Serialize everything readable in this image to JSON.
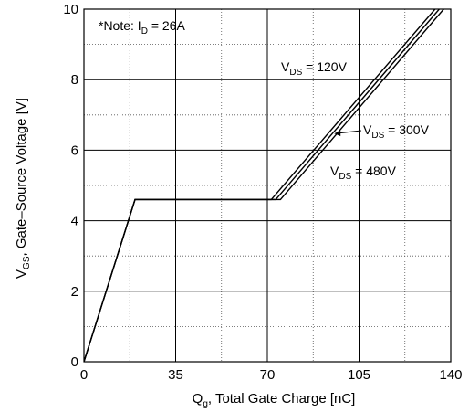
{
  "chart_data": {
    "type": "line",
    "xlabel": {
      "main": "Q",
      "sub": "g",
      "rest": ", Total Gate Charge [nC]"
    },
    "ylabel": {
      "main": "V",
      "sub": "GS",
      "rest": ", Gate–Source Voltage [V]"
    },
    "xlim": [
      0,
      140
    ],
    "ylim": [
      0,
      10
    ],
    "x_ticks": [
      0,
      35,
      70,
      105,
      140
    ],
    "y_ticks": [
      0,
      2,
      4,
      6,
      8,
      10
    ],
    "x_minor_grid": [
      17.5,
      52.5,
      87.5,
      122.5
    ],
    "y_minor_grid": [
      1,
      3,
      5,
      7,
      9
    ],
    "grid": true,
    "note": {
      "prefix": "*Note: I",
      "sub": "D",
      "suffix": " = 26A"
    },
    "series": [
      {
        "name": {
          "main": "V",
          "sub": "DS",
          "rest": " = 120V"
        },
        "x": [
          0,
          19.5,
          71.5,
          134
        ],
        "y": [
          0,
          4.6,
          4.6,
          10
        ]
      },
      {
        "name": {
          "main": "V",
          "sub": "DS",
          "rest": " = 300V"
        },
        "x": [
          0,
          19.5,
          73.2,
          135.6
        ],
        "y": [
          0,
          4.6,
          4.6,
          10
        ]
      },
      {
        "name": {
          "main": "V",
          "sub": "DS",
          "rest": " = 480V"
        },
        "x": [
          0,
          19.5,
          75,
          137.3
        ],
        "y": [
          0,
          4.6,
          4.6,
          10
        ]
      }
    ],
    "annotations": [
      {
        "series": 0,
        "placement": "above-left"
      },
      {
        "series": 1,
        "placement": "right-with-arrow"
      },
      {
        "series": 2,
        "placement": "below-right"
      }
    ]
  }
}
